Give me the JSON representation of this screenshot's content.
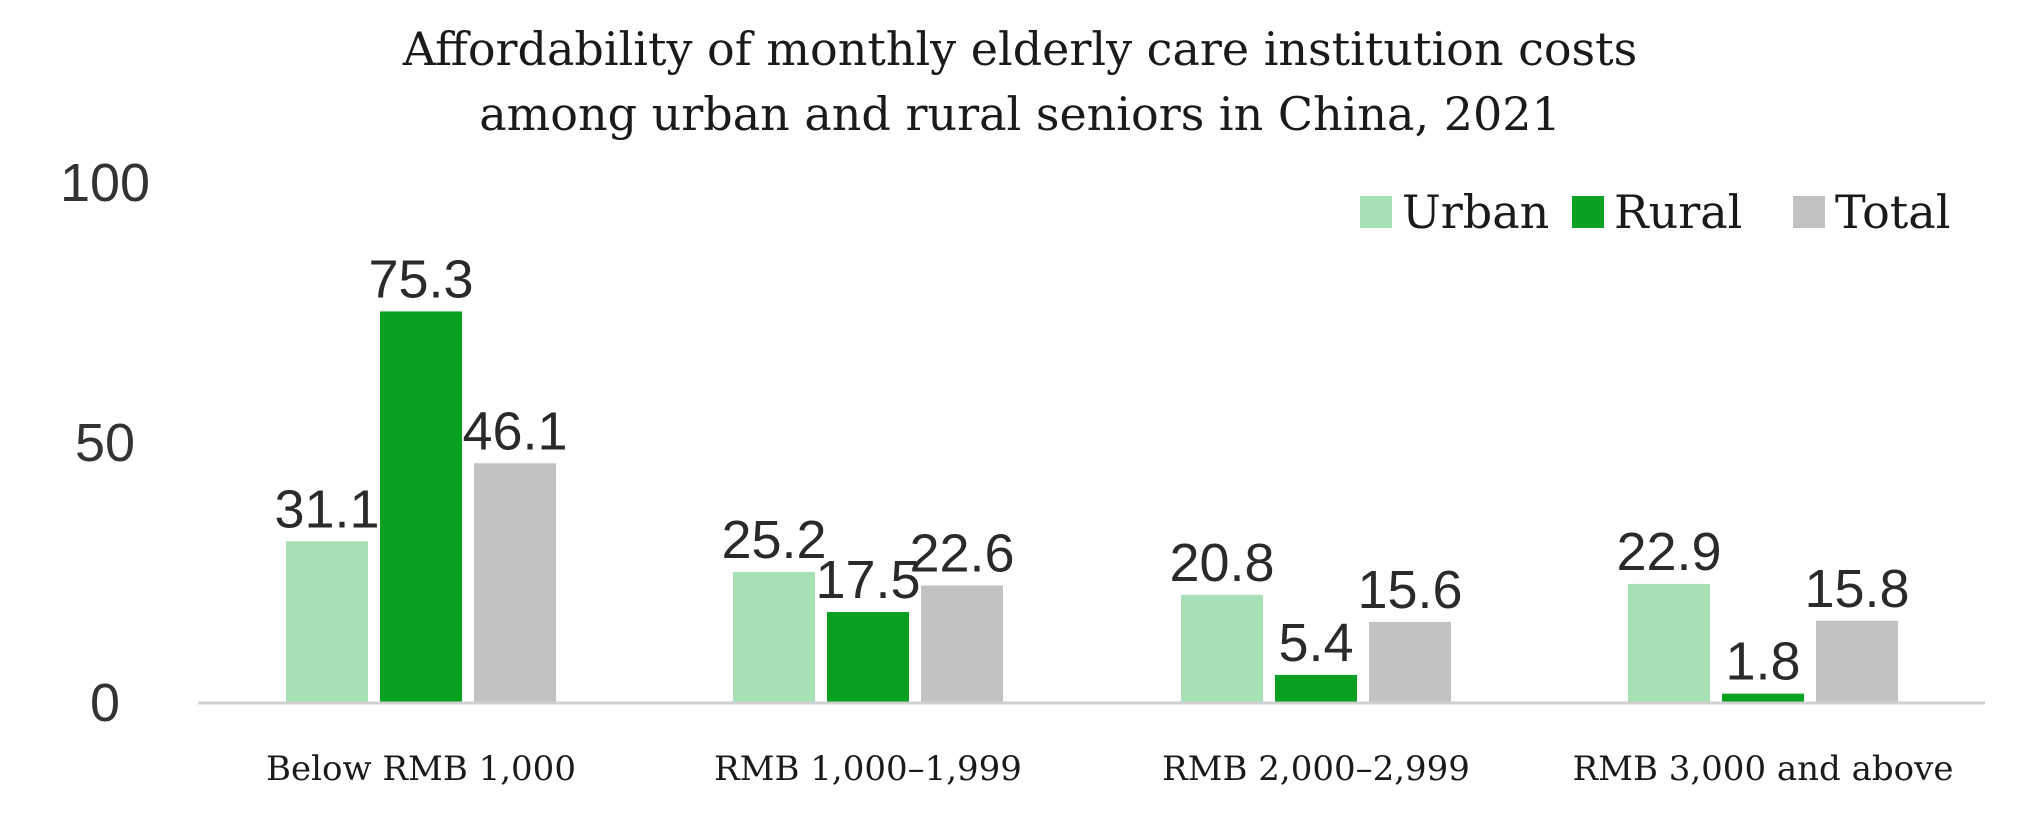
{
  "chart_data": {
    "type": "bar",
    "title": "Affordability of monthly elderly care institution costs",
    "subtitle": "among urban and rural seniors in China, 2021",
    "categories": [
      "Below RMB 1,000",
      "RMB 1,000–1,999",
      "RMB 2,000–2,999",
      "RMB 3,000 and above"
    ],
    "series": [
      {
        "name": "Urban",
        "color": "#a8e0b5",
        "values": [
          31.1,
          25.2,
          20.8,
          22.9
        ]
      },
      {
        "name": "Rural",
        "color": "#0aa020",
        "values": [
          75.3,
          17.5,
          5.4,
          1.8
        ]
      },
      {
        "name": "Total",
        "color": "#c2c2c2",
        "values": [
          46.1,
          22.6,
          15.6,
          15.8
        ]
      }
    ],
    "ylim": [
      0,
      100
    ],
    "yticks": [
      0,
      50,
      100
    ],
    "xlabel": "",
    "ylabel": "",
    "grid": false,
    "legend_position": "top-right",
    "axis_color": "#d0d0d0"
  }
}
